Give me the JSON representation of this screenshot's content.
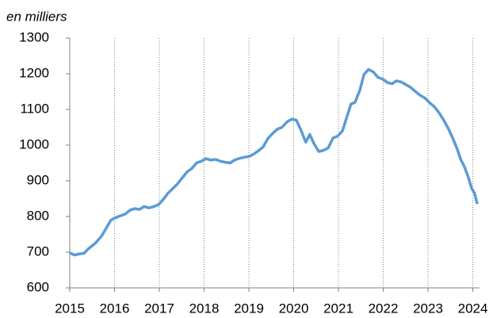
{
  "chart_data": {
    "type": "line",
    "title": "en milliers",
    "x": [
      2015.0,
      2015.11,
      2015.21,
      2015.32,
      2015.42,
      2015.57,
      2015.71,
      2015.85,
      2015.92,
      2016.03,
      2016.13,
      2016.24,
      2016.35,
      2016.45,
      2016.56,
      2016.66,
      2016.77,
      2016.88,
      2016.98,
      2017.09,
      2017.19,
      2017.3,
      2017.41,
      2017.51,
      2017.62,
      2017.73,
      2017.83,
      2017.94,
      2018.04,
      2018.15,
      2018.26,
      2018.36,
      2018.47,
      2018.58,
      2018.68,
      2018.79,
      2018.89,
      2019.0,
      2019.11,
      2019.21,
      2019.32,
      2019.42,
      2019.53,
      2019.64,
      2019.74,
      2019.85,
      2019.96,
      2020.06,
      2020.17,
      2020.27,
      2020.36,
      2020.45,
      2020.56,
      2020.66,
      2020.77,
      2020.88,
      2020.98,
      2021.09,
      2021.19,
      2021.28,
      2021.37,
      2021.48,
      2021.57,
      2021.67,
      2021.78,
      2021.88,
      2021.99,
      2022.1,
      2022.2,
      2022.29,
      2022.4,
      2022.5,
      2022.61,
      2022.72,
      2022.82,
      2022.93,
      2023.04,
      2023.14,
      2023.25,
      2023.35,
      2023.46,
      2023.55,
      2023.64,
      2023.73,
      2023.81,
      2023.9,
      2023.97,
      2024.04,
      2024.1
    ],
    "series": [
      {
        "color": "#5b9bd5",
        "values": [
          698,
          692,
          695,
          697,
          710,
          725,
          745,
          775,
          790,
          797,
          802,
          807,
          818,
          822,
          820,
          828,
          824,
          828,
          833,
          848,
          865,
          878,
          892,
          908,
          925,
          935,
          950,
          955,
          962,
          958,
          960,
          955,
          952,
          950,
          958,
          963,
          966,
          968,
          975,
          984,
          995,
          1018,
          1033,
          1045,
          1050,
          1065,
          1073,
          1070,
          1040,
          1008,
          1030,
          1005,
          982,
          985,
          992,
          1020,
          1025,
          1040,
          1080,
          1115,
          1120,
          1155,
          1198,
          1212,
          1205,
          1190,
          1185,
          1175,
          1172,
          1180,
          1177,
          1170,
          1162,
          1150,
          1140,
          1132,
          1118,
          1108,
          1090,
          1070,
          1045,
          1020,
          993,
          960,
          940,
          910,
          880,
          865,
          835
        ]
      }
    ],
    "xlim": [
      2015,
      2024.15
    ],
    "xticks": [
      2015,
      2016,
      2017,
      2018,
      2019,
      2020,
      2021,
      2022,
      2023,
      2024
    ],
    "ylim": [
      600,
      1300
    ],
    "yticks": [
      600,
      700,
      800,
      900,
      1000,
      1100,
      1200,
      1300
    ],
    "grid": true
  }
}
